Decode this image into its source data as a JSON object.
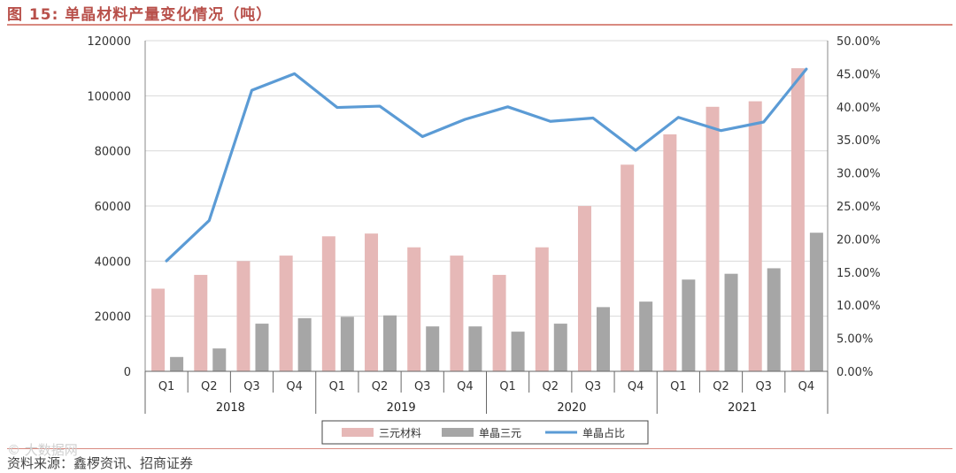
{
  "figure": {
    "title": "图 15:  单晶材料产量变化情况（吨）",
    "source": "资料来源：鑫椤资讯、招商证券",
    "watermark": "© 大数据网"
  },
  "chart_data": {
    "type": "bar",
    "categories": [
      "Q1",
      "Q2",
      "Q3",
      "Q4",
      "Q1",
      "Q2",
      "Q3",
      "Q4",
      "Q1",
      "Q2",
      "Q3",
      "Q4",
      "Q1",
      "Q2",
      "Q3",
      "Q4"
    ],
    "groups": [
      {
        "label": "2018",
        "span": 4
      },
      {
        "label": "2019",
        "span": 4
      },
      {
        "label": "2020",
        "span": 4
      },
      {
        "label": "2021",
        "span": 4
      }
    ],
    "series": [
      {
        "name": "三元材料",
        "type": "bar",
        "axis": "left",
        "color": "#e6b8b7",
        "values": [
          30000,
          35000,
          40000,
          42000,
          49000,
          50000,
          45000,
          42000,
          35000,
          45000,
          60000,
          75000,
          86000,
          96000,
          98000,
          110000
        ]
      },
      {
        "name": "单晶三元",
        "type": "bar",
        "axis": "left",
        "color": "#a6a6a6",
        "values": [
          5200,
          8300,
          17300,
          19300,
          19800,
          20300,
          16300,
          16300,
          14400,
          17300,
          23300,
          25300,
          33300,
          35400,
          37400,
          50300
        ]
      },
      {
        "name": "单晶占比",
        "type": "line",
        "axis": "right",
        "color": "#5b9bd5",
        "values": [
          16.7,
          22.8,
          42.5,
          45.0,
          39.9,
          40.1,
          35.5,
          38.1,
          40.0,
          37.8,
          38.3,
          33.4,
          38.4,
          36.4,
          37.7,
          45.7
        ]
      }
    ],
    "y_left": {
      "min": 0,
      "max": 120000,
      "step": 20000,
      "ticks": [
        "0",
        "20000",
        "40000",
        "60000",
        "80000",
        "100000",
        "120000"
      ]
    },
    "y_right": {
      "min": 0,
      "max": 50,
      "step": 5,
      "ticks": [
        "0.00%",
        "5.00%",
        "10.00%",
        "15.00%",
        "20.00%",
        "25.00%",
        "30.00%",
        "35.00%",
        "40.00%",
        "45.00%",
        "50.00%"
      ]
    },
    "legend_position": "bottom",
    "grid": true
  }
}
